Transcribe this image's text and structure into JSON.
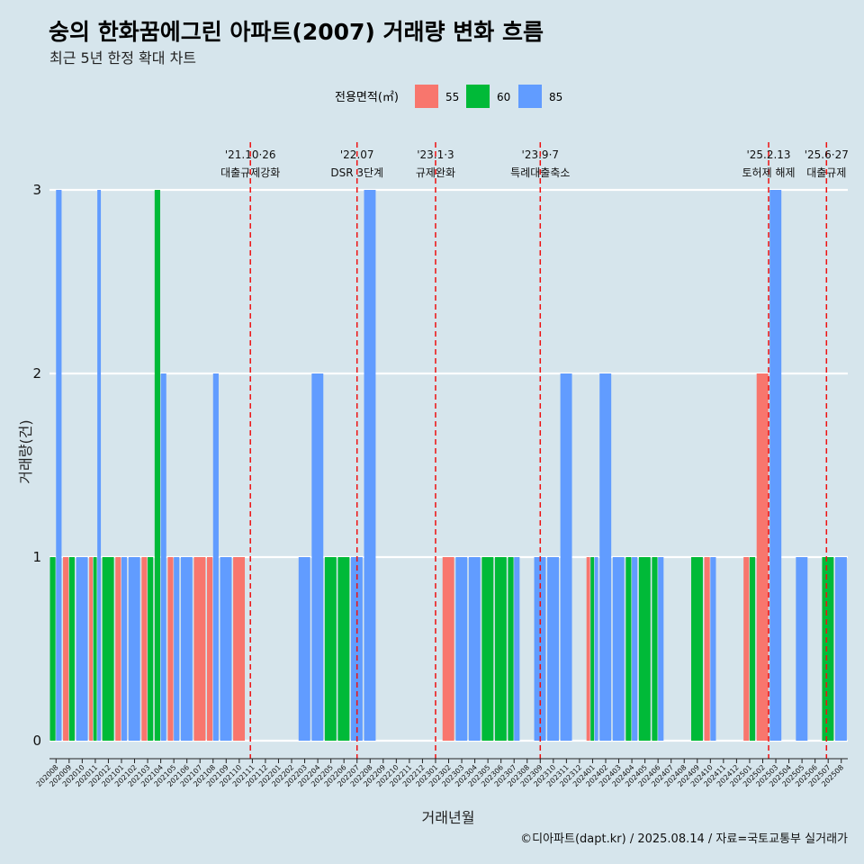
{
  "chart_data": {
    "type": "bar",
    "title": "숭의 한화꿈에그린 아파트(2007) 거래량 변화 흐름",
    "subtitle": "최근 5년 한정 확대 차트",
    "xlabel": "거래년월",
    "ylabel": "거래량(건)",
    "ylim": [
      0,
      3
    ],
    "yticks": [
      0,
      1,
      2,
      3
    ],
    "grid": true,
    "legend": {
      "title": "전용면적(㎡)",
      "placement": "top"
    },
    "categories": [
      "202008",
      "202009",
      "202010",
      "202011",
      "202012",
      "202101",
      "202102",
      "202103",
      "202104",
      "202105",
      "202106",
      "202107",
      "202108",
      "202109",
      "202110",
      "202111",
      "202112",
      "202201",
      "202202",
      "202203",
      "202204",
      "202205",
      "202206",
      "202207",
      "202208",
      "202209",
      "202210",
      "202211",
      "202212",
      "202301",
      "202302",
      "202303",
      "202304",
      "202305",
      "202306",
      "202307",
      "202308",
      "202309",
      "202310",
      "202311",
      "202312",
      "202401",
      "202402",
      "202403",
      "202404",
      "202405",
      "202406",
      "202407",
      "202408",
      "202409",
      "202410",
      "202411",
      "202412",
      "202501",
      "202502",
      "202503",
      "202504",
      "202505",
      "202506",
      "202507",
      "202508"
    ],
    "series": [
      {
        "name": "55",
        "color": "#f8766d",
        "values": [
          0,
          1,
          0,
          1,
          0,
          1,
          0,
          1,
          0,
          1,
          0,
          1,
          1,
          0,
          1,
          0,
          0,
          0,
          0,
          0,
          0,
          0,
          0,
          0,
          0,
          0,
          0,
          0,
          0,
          0,
          1,
          0,
          0,
          0,
          0,
          0,
          0,
          0,
          0,
          0,
          0,
          1,
          0,
          0,
          0,
          0,
          0,
          0,
          0,
          0,
          1,
          0,
          0,
          1,
          2,
          0,
          0,
          0,
          0,
          0,
          0
        ]
      },
      {
        "name": "60",
        "color": "#00ba38",
        "values": [
          1,
          1,
          0,
          1,
          1,
          0,
          0,
          1,
          3,
          0,
          0,
          0,
          0,
          0,
          0,
          0,
          0,
          0,
          0,
          0,
          0,
          1,
          1,
          0,
          0,
          0,
          0,
          0,
          0,
          0,
          0,
          0,
          0,
          1,
          1,
          1,
          0,
          0,
          0,
          0,
          0,
          1,
          0,
          0,
          1,
          1,
          1,
          0,
          0,
          1,
          0,
          0,
          0,
          1,
          0,
          0,
          0,
          0,
          0,
          1,
          0
        ]
      },
      {
        "name": "85",
        "color": "#619cff",
        "values": [
          3,
          0,
          1,
          3,
          0,
          1,
          1,
          0,
          2,
          1,
          1,
          0,
          2,
          1,
          0,
          0,
          0,
          0,
          0,
          1,
          2,
          0,
          0,
          1,
          3,
          0,
          0,
          0,
          0,
          0,
          0,
          1,
          1,
          0,
          0,
          1,
          0,
          1,
          1,
          2,
          0,
          1,
          2,
          1,
          1,
          0,
          1,
          0,
          0,
          0,
          1,
          0,
          0,
          0,
          0,
          3,
          0,
          1,
          0,
          0,
          1
        ]
      }
    ],
    "annotations": [
      {
        "date": "202110.85",
        "lines": [
          "'21.10·26",
          "대출규제강화"
        ]
      },
      {
        "date": "202207",
        "lines": [
          "'22.07",
          "DSR 3단계"
        ]
      },
      {
        "date": "202301",
        "lines": [
          "'23.1·3",
          "규제완화"
        ]
      },
      {
        "date": "202309",
        "lines": [
          "'23.9·7",
          "특례대출축소"
        ]
      },
      {
        "date": "202502.45",
        "lines": [
          "'25.2.13",
          "토허제 해제"
        ]
      },
      {
        "date": "202506.87",
        "lines": [
          "'25.6·27",
          "대출규제"
        ]
      }
    ]
  },
  "caption": "©디아파트(dapt.kr) / 2025.08.14 / 자료=국토교통부 실거래가"
}
